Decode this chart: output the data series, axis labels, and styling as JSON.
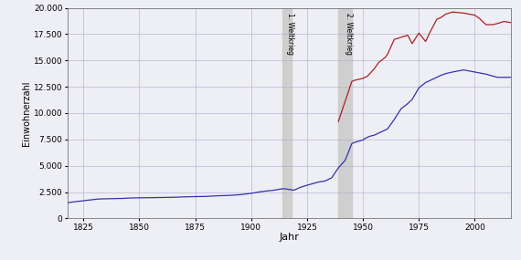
{
  "title": "",
  "xlabel": "Jahr",
  "ylabel": "Einwohnerzahl",
  "ylim": [
    0,
    20000
  ],
  "xlim": [
    1818,
    2016
  ],
  "yticks": [
    0,
    2500,
    5000,
    7500,
    10000,
    12500,
    15000,
    17500,
    20000
  ],
  "xticks": [
    1825,
    1850,
    1875,
    1900,
    1925,
    1950,
    1975,
    2000
  ],
  "ww1_start": 1914,
  "ww1_end": 1918,
  "ww2_start": 1939,
  "ww2_end": 1945,
  "ww1_label": "1. Weltkrieg",
  "ww2_label": "2. Weltkrieg",
  "blue_data": [
    [
      1818,
      1500
    ],
    [
      1820,
      1550
    ],
    [
      1825,
      1680
    ],
    [
      1830,
      1800
    ],
    [
      1831,
      1830
    ],
    [
      1834,
      1860
    ],
    [
      1837,
      1870
    ],
    [
      1840,
      1890
    ],
    [
      1843,
      1900
    ],
    [
      1845,
      1930
    ],
    [
      1849,
      1950
    ],
    [
      1852,
      1960
    ],
    [
      1855,
      1970
    ],
    [
      1858,
      1980
    ],
    [
      1861,
      1990
    ],
    [
      1864,
      2000
    ],
    [
      1867,
      2020
    ],
    [
      1871,
      2050
    ],
    [
      1875,
      2070
    ],
    [
      1880,
      2090
    ],
    [
      1885,
      2150
    ],
    [
      1890,
      2180
    ],
    [
      1895,
      2250
    ],
    [
      1900,
      2380
    ],
    [
      1905,
      2560
    ],
    [
      1910,
      2670
    ],
    [
      1914,
      2820
    ],
    [
      1916,
      2780
    ],
    [
      1918,
      2720
    ],
    [
      1919,
      2680
    ],
    [
      1920,
      2760
    ],
    [
      1922,
      2950
    ],
    [
      1925,
      3150
    ],
    [
      1930,
      3450
    ],
    [
      1933,
      3550
    ],
    [
      1936,
      3850
    ],
    [
      1939,
      4800
    ],
    [
      1942,
      5500
    ],
    [
      1945,
      7100
    ],
    [
      1946,
      7200
    ],
    [
      1950,
      7450
    ],
    [
      1951,
      7600
    ],
    [
      1952,
      7700
    ],
    [
      1953,
      7800
    ],
    [
      1955,
      7900
    ],
    [
      1957,
      8100
    ],
    [
      1960,
      8400
    ],
    [
      1961,
      8500
    ],
    [
      1964,
      9400
    ],
    [
      1967,
      10400
    ],
    [
      1970,
      10900
    ],
    [
      1972,
      11300
    ],
    [
      1975,
      12400
    ],
    [
      1978,
      12900
    ],
    [
      1980,
      13100
    ],
    [
      1983,
      13400
    ],
    [
      1985,
      13600
    ],
    [
      1987,
      13750
    ],
    [
      1990,
      13900
    ],
    [
      1995,
      14100
    ],
    [
      2000,
      13900
    ],
    [
      2005,
      13700
    ],
    [
      2010,
      13400
    ],
    [
      2016,
      13400
    ]
  ],
  "red_data": [
    [
      1939,
      9200
    ],
    [
      1945,
      13000
    ],
    [
      1946,
      13100
    ],
    [
      1950,
      13300
    ],
    [
      1952,
      13500
    ],
    [
      1955,
      14200
    ],
    [
      1957,
      14800
    ],
    [
      1960,
      15300
    ],
    [
      1961,
      15600
    ],
    [
      1964,
      17000
    ],
    [
      1967,
      17200
    ],
    [
      1970,
      17400
    ],
    [
      1972,
      16600
    ],
    [
      1975,
      17600
    ],
    [
      1978,
      16800
    ],
    [
      1980,
      17700
    ],
    [
      1983,
      18900
    ],
    [
      1985,
      19100
    ],
    [
      1987,
      19400
    ],
    [
      1990,
      19600
    ],
    [
      1995,
      19500
    ],
    [
      2000,
      19300
    ],
    [
      2002,
      19000
    ],
    [
      2005,
      18400
    ],
    [
      2008,
      18400
    ],
    [
      2010,
      18500
    ],
    [
      2013,
      18700
    ],
    [
      2016,
      18600
    ]
  ],
  "blue_color": "#3333aa",
  "red_color": "#aa2222",
  "shade_color": "#cccccc",
  "bg_color": "#eeeef5",
  "grid_color": "#aaaacc"
}
